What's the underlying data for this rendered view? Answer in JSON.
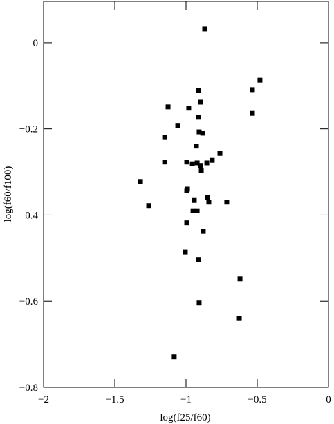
{
  "chart_data": {
    "type": "scatter",
    "xlabel": "log(f25/f60)",
    "ylabel": "log(f60/f100)",
    "color": "#000000",
    "xlim": [
      -2,
      0
    ],
    "ylim": [
      -0.8,
      0.096
    ],
    "xticks": [
      {
        "value": -2,
        "label": "−2"
      },
      {
        "value": -1.5,
        "label": "−1.5"
      },
      {
        "value": -1,
        "label": "−1"
      },
      {
        "value": -0.5,
        "label": "−0.5"
      },
      0
    ],
    "yticks": [
      {
        "value": -0.8,
        "label": "−0.8"
      },
      {
        "value": -0.6,
        "label": "−0.6"
      },
      {
        "value": -0.4,
        "label": "−0.4"
      },
      {
        "value": -0.2,
        "label": "−0.2"
      },
      0
    ],
    "x": [
      -0.869,
      -0.481,
      -0.534,
      -0.913,
      -0.898,
      -1.126,
      -0.981,
      -0.534,
      -0.913,
      -1.058,
      -0.908,
      -0.883,
      -1.15,
      -0.927,
      -0.762,
      -0.816,
      -1.15,
      -0.995,
      -0.956,
      -0.922,
      -0.898,
      -0.854,
      -0.893,
      -1.32,
      -0.99,
      -0.995,
      -0.85,
      -0.942,
      -0.84,
      -0.714,
      -1.262,
      -0.951,
      -0.922,
      -0.995,
      -0.879,
      -1.005,
      -0.913,
      -0.621,
      -0.908,
      -0.626,
      -1.083
    ],
    "values": [
      0.032,
      -0.087,
      -0.109,
      -0.111,
      -0.138,
      -0.149,
      -0.152,
      -0.164,
      -0.173,
      -0.192,
      -0.207,
      -0.21,
      -0.22,
      -0.24,
      -0.257,
      -0.273,
      -0.277,
      -0.277,
      -0.281,
      -0.279,
      -0.285,
      -0.279,
      -0.297,
      -0.322,
      -0.34,
      -0.343,
      -0.359,
      -0.366,
      -0.37,
      -0.37,
      -0.378,
      -0.39,
      -0.39,
      -0.418,
      -0.438,
      -0.486,
      -0.503,
      -0.548,
      -0.604,
      -0.64,
      -0.729
    ]
  }
}
